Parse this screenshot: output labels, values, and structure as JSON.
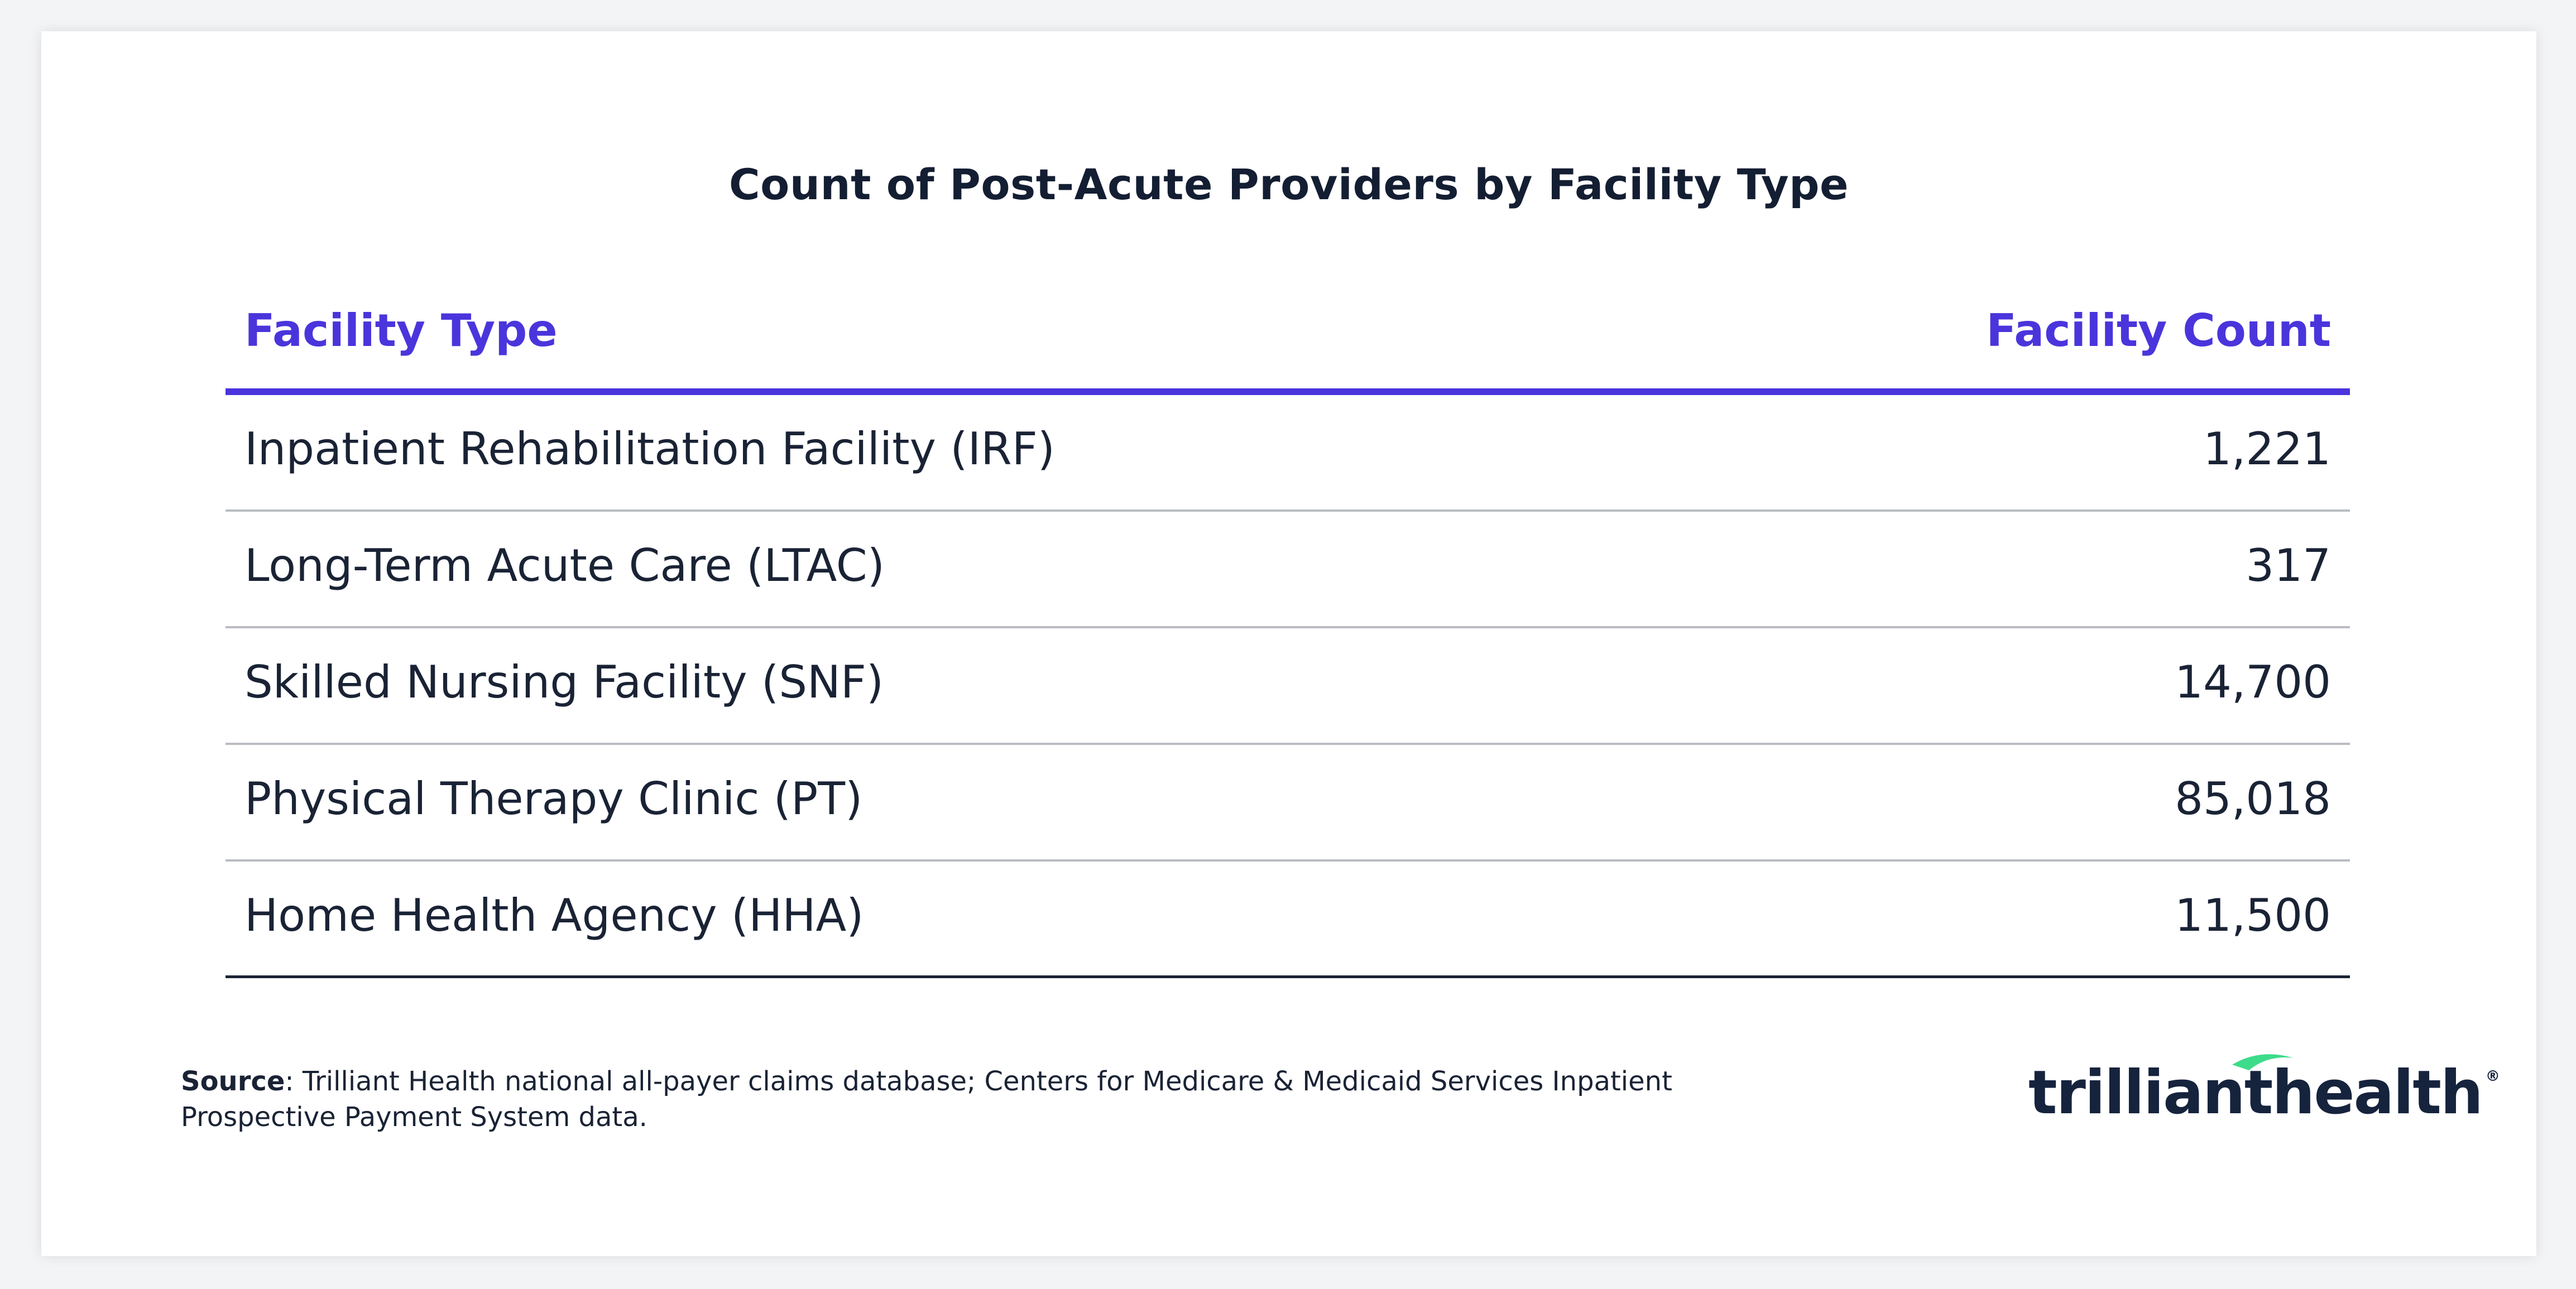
{
  "chart_data": {
    "type": "table",
    "title": "Count of Post-Acute Providers by Facility Type",
    "columns": [
      "Facility Type",
      "Facility Count"
    ],
    "rows": [
      {
        "facility_type": "Inpatient Rehabilitation Facility (IRF)",
        "facility_count": "1,221"
      },
      {
        "facility_type": "Long-Term Acute Care (LTAC)",
        "facility_count": "317"
      },
      {
        "facility_type": "Skilled Nursing Facility (SNF)",
        "facility_count": "14,700"
      },
      {
        "facility_type": "Physical Therapy Clinic (PT)",
        "facility_count": "85,018"
      },
      {
        "facility_type": "Home Health Agency (HHA)",
        "facility_count": "11,500"
      }
    ]
  },
  "footer": {
    "source_label": "Source",
    "source_text": ": Trilliant Health national all-payer claims database; Centers for Medicare & Medicaid Services Inpatient",
    "source_text_line2": "Prospective Payment System data."
  },
  "logo": {
    "part1": "trilliant",
    "part2": "health",
    "reg": "®",
    "accent_color": "#3ddc8a"
  },
  "colors": {
    "header_accent": "#4a35dc",
    "text_dark": "#1a2335"
  }
}
